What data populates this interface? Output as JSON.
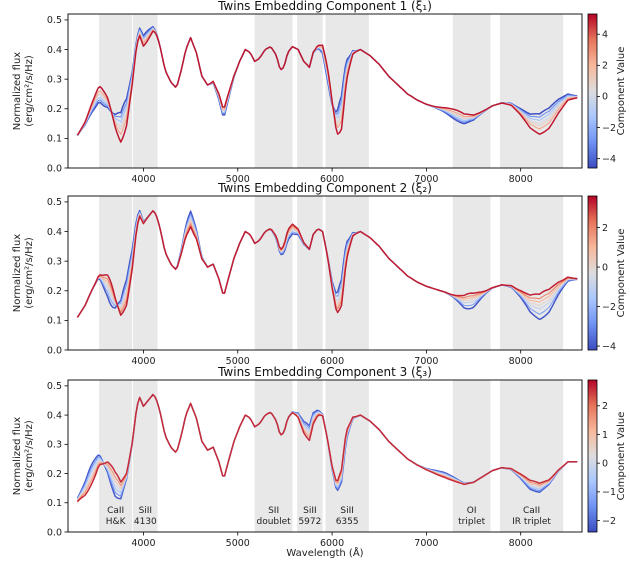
{
  "chart_data": {
    "type": "line",
    "xlabel": "Wavelength (Å)",
    "ylabel_line1": "Normalized flux",
    "ylabel_line2": "(erg/cm²/s/Hz)",
    "xlim": [
      3200,
      8650
    ],
    "ylim": [
      0.0,
      0.52
    ],
    "x_ticks": [
      4000,
      5000,
      6000,
      7000,
      8000
    ],
    "y_ticks": [
      0.0,
      0.1,
      0.2,
      0.3,
      0.4,
      0.5
    ],
    "y_tick_labels": [
      "0.0",
      "0.1",
      "0.2",
      "0.3",
      "0.4",
      "0.5"
    ],
    "colorbar_label": "Component Value",
    "colormap": [
      "#3b4cc0",
      "#6f92f3",
      "#aac7fd",
      "#dddddd",
      "#f7b89c",
      "#e7745b",
      "#b40426"
    ],
    "feature_bands": [
      {
        "range": [
          3530,
          3880
        ],
        "label": "CaII\nH&K"
      },
      {
        "range": [
          3890,
          4150
        ],
        "label": "SiII\n4130"
      },
      {
        "range": [
          5180,
          5580
        ],
        "label": "SII\ndoublet"
      },
      {
        "range": [
          5630,
          5900
        ],
        "label": "SiII\n5972"
      },
      {
        "range": [
          5930,
          6390
        ],
        "label": "SiII\n6355"
      },
      {
        "range": [
          7280,
          7680
        ],
        "label": "OI\ntriplet"
      },
      {
        "range": [
          7780,
          8450
        ],
        "label": "CaII\nIR triplet"
      }
    ],
    "panels": [
      {
        "title": "Twins Embedding Component 1 (ξ₁)",
        "cbar_range": [
          -4.6,
          5.3
        ],
        "cbar_ticks": [
          -4,
          -2,
          0,
          2,
          4
        ],
        "cbar_tick_labels": [
          "−4",
          "−2",
          "0",
          "2",
          "4"
        ],
        "series_values": [
          -4.5,
          -3.0,
          -1.5,
          0.0,
          1.0,
          2.5,
          5.0
        ],
        "variant": 1
      },
      {
        "title": "Twins Embedding Component 2 (ξ₂)",
        "cbar_range": [
          -4.2,
          3.6
        ],
        "cbar_ticks": [
          -4,
          -2,
          0,
          2
        ],
        "cbar_tick_labels": [
          "−4",
          "−2",
          "0",
          "2"
        ],
        "series_values": [
          -4.0,
          -2.5,
          -1.0,
          0.0,
          1.0,
          2.0,
          3.3
        ],
        "variant": 2
      },
      {
        "title": "Twins Embedding Component 3 (ξ₃)",
        "cbar_range": [
          -2.4,
          2.9
        ],
        "cbar_ticks": [
          -2,
          -1,
          0,
          1,
          2
        ],
        "cbar_tick_labels": [
          "−2",
          "−1",
          "0",
          "1",
          "2"
        ],
        "series_values": [
          -2.2,
          -1.4,
          -0.6,
          0.0,
          0.8,
          1.6,
          2.6
        ],
        "variant": 3
      }
    ],
    "base_spectrum": {
      "x": [
        3300,
        3380,
        3450,
        3530,
        3620,
        3700,
        3760,
        3820,
        3880,
        3930,
        3960,
        4000,
        4050,
        4100,
        4130,
        4170,
        4230,
        4290,
        4350,
        4400,
        4450,
        4500,
        4560,
        4620,
        4680,
        4740,
        4800,
        4850,
        4900,
        4960,
        5020,
        5080,
        5130,
        5180,
        5230,
        5290,
        5350,
        5410,
        5450,
        5490,
        5530,
        5580,
        5640,
        5700,
        5760,
        5800,
        5850,
        5900,
        5950,
        6000,
        6050,
        6100,
        6150,
        6220,
        6300,
        6400,
        6500,
        6600,
        6700,
        6800,
        6900,
        7000,
        7100,
        7200,
        7300,
        7400,
        7500,
        7600,
        7700,
        7800,
        7900,
        8000,
        8100,
        8200,
        8300,
        8400,
        8500,
        8600
      ],
      "y": [
        0.11,
        0.15,
        0.2,
        0.25,
        0.22,
        0.16,
        0.14,
        0.19,
        0.3,
        0.43,
        0.46,
        0.43,
        0.45,
        0.47,
        0.46,
        0.42,
        0.33,
        0.29,
        0.27,
        0.33,
        0.4,
        0.44,
        0.39,
        0.31,
        0.28,
        0.29,
        0.24,
        0.18,
        0.24,
        0.31,
        0.36,
        0.4,
        0.39,
        0.36,
        0.37,
        0.4,
        0.41,
        0.38,
        0.33,
        0.34,
        0.39,
        0.41,
        0.4,
        0.36,
        0.34,
        0.39,
        0.41,
        0.4,
        0.32,
        0.22,
        0.15,
        0.19,
        0.33,
        0.39,
        0.4,
        0.38,
        0.35,
        0.31,
        0.28,
        0.25,
        0.23,
        0.215,
        0.205,
        0.195,
        0.18,
        0.165,
        0.17,
        0.19,
        0.21,
        0.22,
        0.215,
        0.19,
        0.16,
        0.15,
        0.17,
        0.21,
        0.24,
        0.24
      ]
    }
  }
}
